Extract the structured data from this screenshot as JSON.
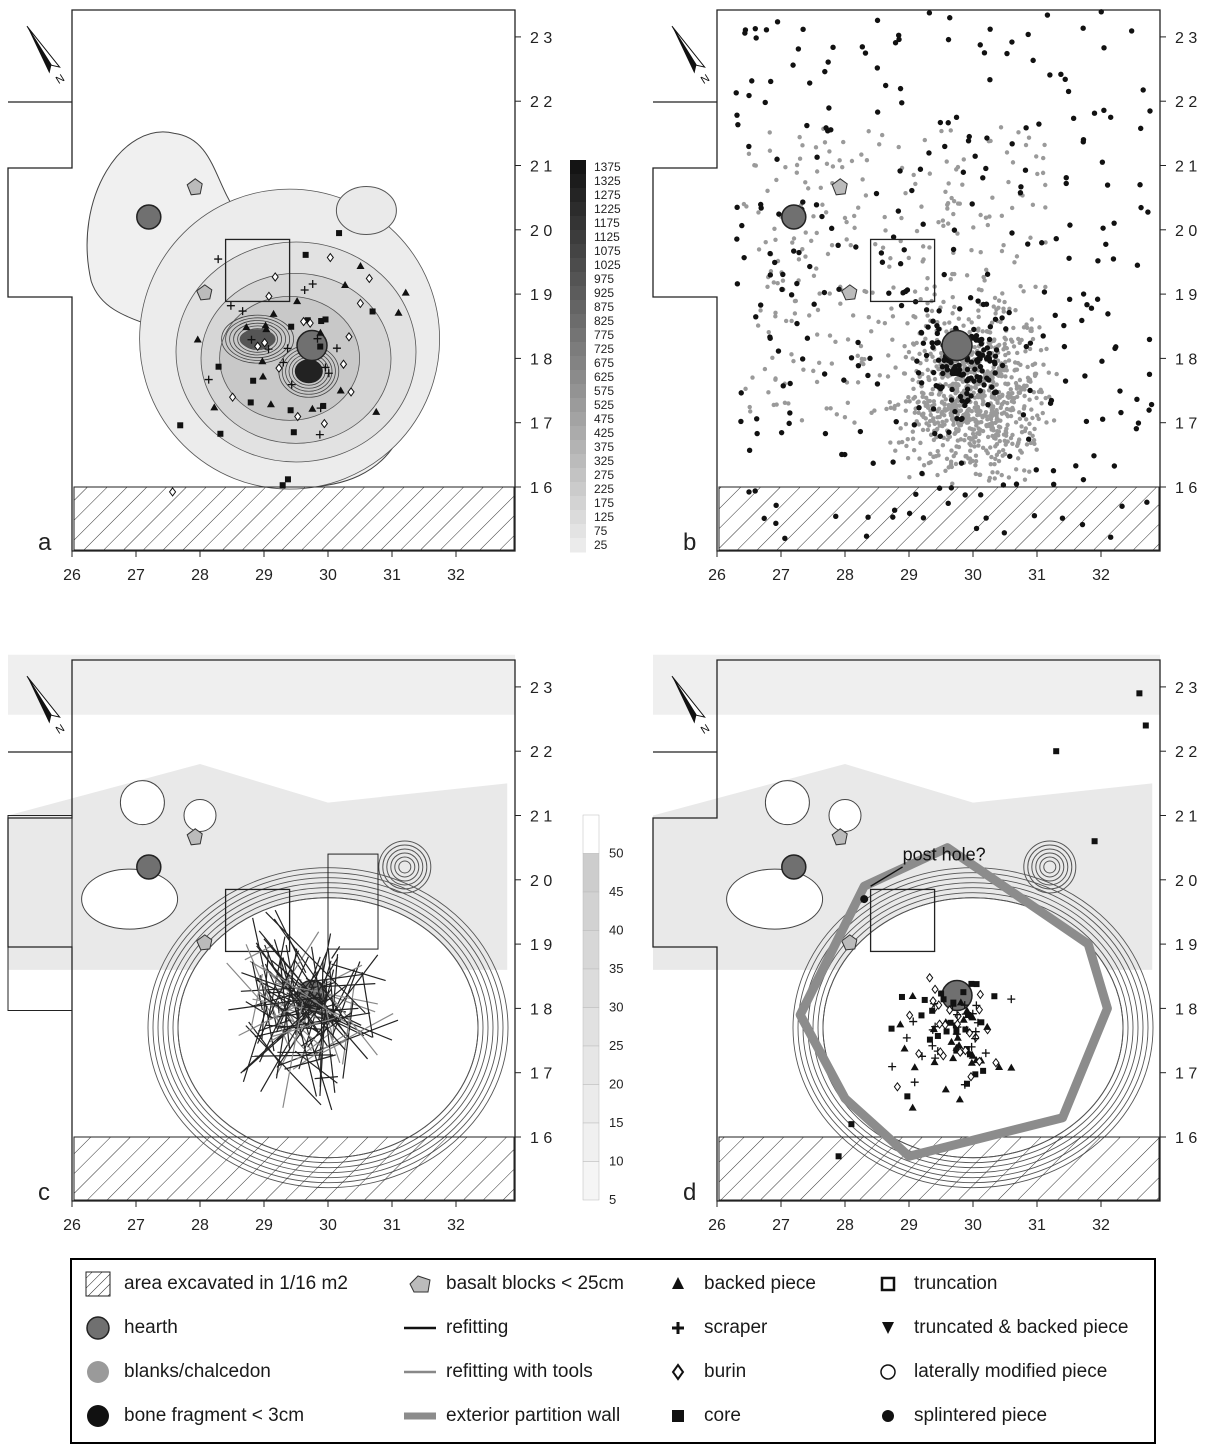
{
  "panels": [
    {
      "id": "a",
      "letter": "a",
      "y_ticks": [
        "2 3",
        "2 2",
        "2 1",
        "2 0",
        "1 9",
        "1 8",
        "1 7",
        "1 6"
      ],
      "x_ticks": [
        "26",
        "27",
        "28",
        "29",
        "30",
        "31",
        "32"
      ]
    },
    {
      "id": "b",
      "letter": "b",
      "y_ticks": [
        "2 3",
        "2 2",
        "2 1",
        "2 0",
        "1 9",
        "1 8",
        "1 7",
        "1 6"
      ],
      "x_ticks": [
        "26",
        "27",
        "28",
        "29",
        "30",
        "31",
        "32"
      ]
    },
    {
      "id": "c",
      "letter": "c",
      "y_ticks": [
        "2 3",
        "2 2",
        "2 1",
        "2 0",
        "1 9",
        "1 8",
        "1 7",
        "1 6"
      ],
      "x_ticks": [
        "26",
        "27",
        "28",
        "29",
        "30",
        "31",
        "32"
      ]
    },
    {
      "id": "d",
      "letter": "d",
      "y_ticks": [
        "2 3",
        "2 2",
        "2 1",
        "2 0",
        "1 9",
        "1 8",
        "1 7",
        "1 6"
      ],
      "x_ticks": [
        "26",
        "27",
        "28",
        "29",
        "30",
        "31",
        "32"
      ]
    }
  ],
  "north_label": "N",
  "scale_a": {
    "values": [
      "1375",
      "1325",
      "1275",
      "1225",
      "1175",
      "1125",
      "1075",
      "1025",
      "975",
      "925",
      "875",
      "825",
      "775",
      "725",
      "675",
      "625",
      "575",
      "525",
      "475",
      "425",
      "375",
      "325",
      "275",
      "225",
      "175",
      "125",
      "75",
      "25"
    ]
  },
  "scale_c": {
    "values": [
      "50",
      "45",
      "40",
      "35",
      "30",
      "25",
      "20",
      "15",
      "10",
      "5"
    ]
  },
  "annotation_post_hole": "post hole?",
  "legend": {
    "items": [
      {
        "key": "area",
        "label": "area excavated in 1/16 m2",
        "icon": "hatched-square-icon"
      },
      {
        "key": "hearth",
        "label": "hearth",
        "icon": "hearth-circle-icon"
      },
      {
        "key": "blanks",
        "label": "blanks/chalcedon",
        "icon": "grey-dot-icon"
      },
      {
        "key": "bone",
        "label": "bone fragment < 3cm",
        "icon": "black-dot-icon"
      },
      {
        "key": "basalt",
        "label": "basalt blocks < 25cm",
        "icon": "basalt-block-icon"
      },
      {
        "key": "refit",
        "label": "refitting",
        "icon": "black-line-icon"
      },
      {
        "key": "refit_tools",
        "label": "refitting with tools",
        "icon": "grey-line-icon"
      },
      {
        "key": "wall",
        "label": "exterior partition wall",
        "icon": "thick-grey-line-icon"
      },
      {
        "key": "backed",
        "label": "backed piece",
        "icon": "triangle-icon"
      },
      {
        "key": "scraper",
        "label": "scraper",
        "icon": "plus-icon"
      },
      {
        "key": "burin",
        "label": "burin",
        "icon": "diamond-icon"
      },
      {
        "key": "core",
        "label": "core",
        "icon": "filled-square-icon"
      },
      {
        "key": "truncation",
        "label": "truncation",
        "icon": "open-square-icon"
      },
      {
        "key": "trunc_backed",
        "label": "truncated & backed piece",
        "icon": "inverted-triangle-icon"
      },
      {
        "key": "lateral",
        "label": "laterally modified piece",
        "icon": "open-circle-icon"
      },
      {
        "key": "splintered",
        "label": "splintered piece",
        "icon": "filled-circle-icon"
      }
    ]
  },
  "colors": {
    "hearth": "#707070",
    "blanks": "#9a9a9a",
    "bone": "#111111",
    "wall": "#8c8c8c",
    "contour_fill": "#e8e8e8"
  }
}
